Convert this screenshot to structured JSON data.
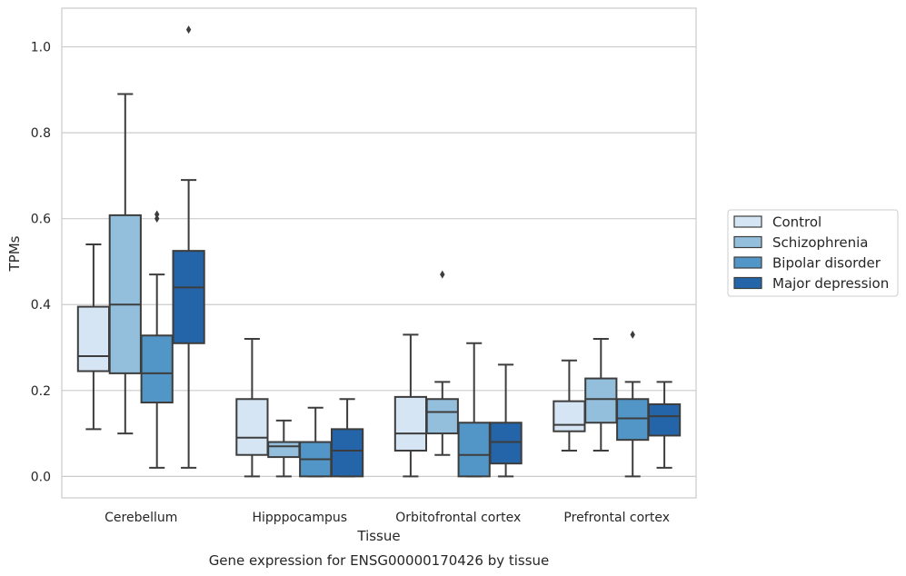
{
  "chart_data": {
    "type": "box",
    "title": "",
    "caption": "Gene expression for ENSG00000170426 by tissue",
    "xlabel": "Tissue",
    "ylabel": "TPMs",
    "ylim": [
      -0.05,
      1.09
    ],
    "yticks": [
      0.0,
      0.2,
      0.4,
      0.6,
      0.8,
      1.0
    ],
    "ytick_labels": [
      "0.0",
      "0.2",
      "0.4",
      "0.6",
      "0.8",
      "1.0"
    ],
    "grid": "horizontal",
    "legend_position": "right",
    "categories": [
      "Cerebellum",
      "Hipppocampus",
      "Orbitofrontal cortex",
      "Prefrontal cortex"
    ],
    "series": [
      {
        "name": "Control",
        "color": "#d6e5f3",
        "boxes": [
          {
            "whisker_low": 0.11,
            "q1": 0.245,
            "median": 0.28,
            "q3": 0.395,
            "whisker_high": 0.54,
            "outliers": []
          },
          {
            "whisker_low": 0.0,
            "q1": 0.05,
            "median": 0.09,
            "q3": 0.18,
            "whisker_high": 0.32,
            "outliers": []
          },
          {
            "whisker_low": 0.0,
            "q1": 0.06,
            "median": 0.1,
            "q3": 0.185,
            "whisker_high": 0.33,
            "outliers": []
          },
          {
            "whisker_low": 0.06,
            "q1": 0.105,
            "median": 0.12,
            "q3": 0.175,
            "whisker_high": 0.27,
            "outliers": []
          }
        ]
      },
      {
        "name": "Schizophrenia",
        "color": "#93bfdc",
        "boxes": [
          {
            "whisker_low": 0.1,
            "q1": 0.24,
            "median": 0.4,
            "q3": 0.608,
            "whisker_high": 0.89,
            "outliers": []
          },
          {
            "whisker_low": 0.0,
            "q1": 0.045,
            "median": 0.07,
            "q3": 0.08,
            "whisker_high": 0.13,
            "outliers": []
          },
          {
            "whisker_low": 0.05,
            "q1": 0.1,
            "median": 0.15,
            "q3": 0.18,
            "whisker_high": 0.22,
            "outliers": [
              0.47
            ]
          },
          {
            "whisker_low": 0.06,
            "q1": 0.125,
            "median": 0.18,
            "q3": 0.228,
            "whisker_high": 0.32,
            "outliers": []
          }
        ]
      },
      {
        "name": "Bipolar disorder",
        "color": "#5296c7",
        "boxes": [
          {
            "whisker_low": 0.02,
            "q1": 0.172,
            "median": 0.24,
            "q3": 0.328,
            "whisker_high": 0.47,
            "outliers": [
              0.6,
              0.61
            ]
          },
          {
            "whisker_low": 0.0,
            "q1": 0.0,
            "median": 0.04,
            "q3": 0.08,
            "whisker_high": 0.16,
            "outliers": []
          },
          {
            "whisker_low": 0.0,
            "q1": 0.0,
            "median": 0.05,
            "q3": 0.125,
            "whisker_high": 0.31,
            "outliers": []
          },
          {
            "whisker_low": 0.0,
            "q1": 0.085,
            "median": 0.135,
            "q3": 0.18,
            "whisker_high": 0.22,
            "outliers": [
              0.33
            ]
          }
        ]
      },
      {
        "name": "Major depression",
        "color": "#2464a8",
        "boxes": [
          {
            "whisker_low": 0.02,
            "q1": 0.31,
            "median": 0.44,
            "q3": 0.525,
            "whisker_high": 0.69,
            "outliers": [
              1.04
            ]
          },
          {
            "whisker_low": 0.0,
            "q1": 0.0,
            "median": 0.06,
            "q3": 0.11,
            "whisker_high": 0.18,
            "outliers": []
          },
          {
            "whisker_low": 0.0,
            "q1": 0.03,
            "median": 0.08,
            "q3": 0.125,
            "whisker_high": 0.26,
            "outliers": []
          },
          {
            "whisker_low": 0.02,
            "q1": 0.095,
            "median": 0.14,
            "q3": 0.168,
            "whisker_high": 0.22,
            "outliers": []
          }
        ]
      }
    ]
  }
}
